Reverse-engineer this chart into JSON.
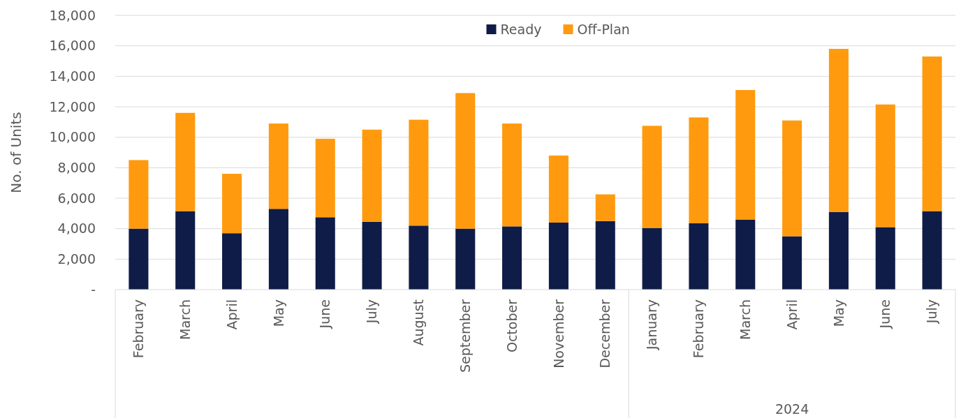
{
  "chart_data": {
    "type": "bar",
    "stacked": true,
    "ylabel": "No. of Units",
    "categories": [
      "February",
      "March",
      "April",
      "May",
      "June",
      "July",
      "August",
      "September",
      "October",
      "November",
      "December",
      "January",
      "February",
      "March",
      "April",
      "May",
      "June",
      "July"
    ],
    "series": [
      {
        "name": "Ready",
        "color": "#0f1c48",
        "values": [
          4000,
          5150,
          3700,
          5300,
          4750,
          4450,
          4200,
          4000,
          4150,
          4400,
          4500,
          4050,
          4350,
          4600,
          3500,
          5100,
          4100,
          5150
        ]
      },
      {
        "name": "Off-Plan",
        "color": "#ff9a0e",
        "values": [
          4500,
          6450,
          3900,
          5600,
          5150,
          6050,
          6950,
          8900,
          6750,
          4400,
          1750,
          6700,
          6950,
          8500,
          7600,
          10700,
          8050,
          10150
        ]
      }
    ],
    "ylim": [
      0,
      18000
    ],
    "yticks": [
      {
        "value": 0,
        "label": "-"
      },
      {
        "value": 2000,
        "label": "2,000"
      },
      {
        "value": 4000,
        "label": "4,000"
      },
      {
        "value": 6000,
        "label": "6,000"
      },
      {
        "value": 8000,
        "label": "8,000"
      },
      {
        "value": 10000,
        "label": "10,000"
      },
      {
        "value": 12000,
        "label": "12,000"
      },
      {
        "value": 14000,
        "label": "14,000"
      },
      {
        "value": 16000,
        "label": "16,000"
      },
      {
        "value": 18000,
        "label": "18,000"
      }
    ],
    "grid": "y",
    "legend": "top",
    "annotations": [
      "2024"
    ]
  }
}
